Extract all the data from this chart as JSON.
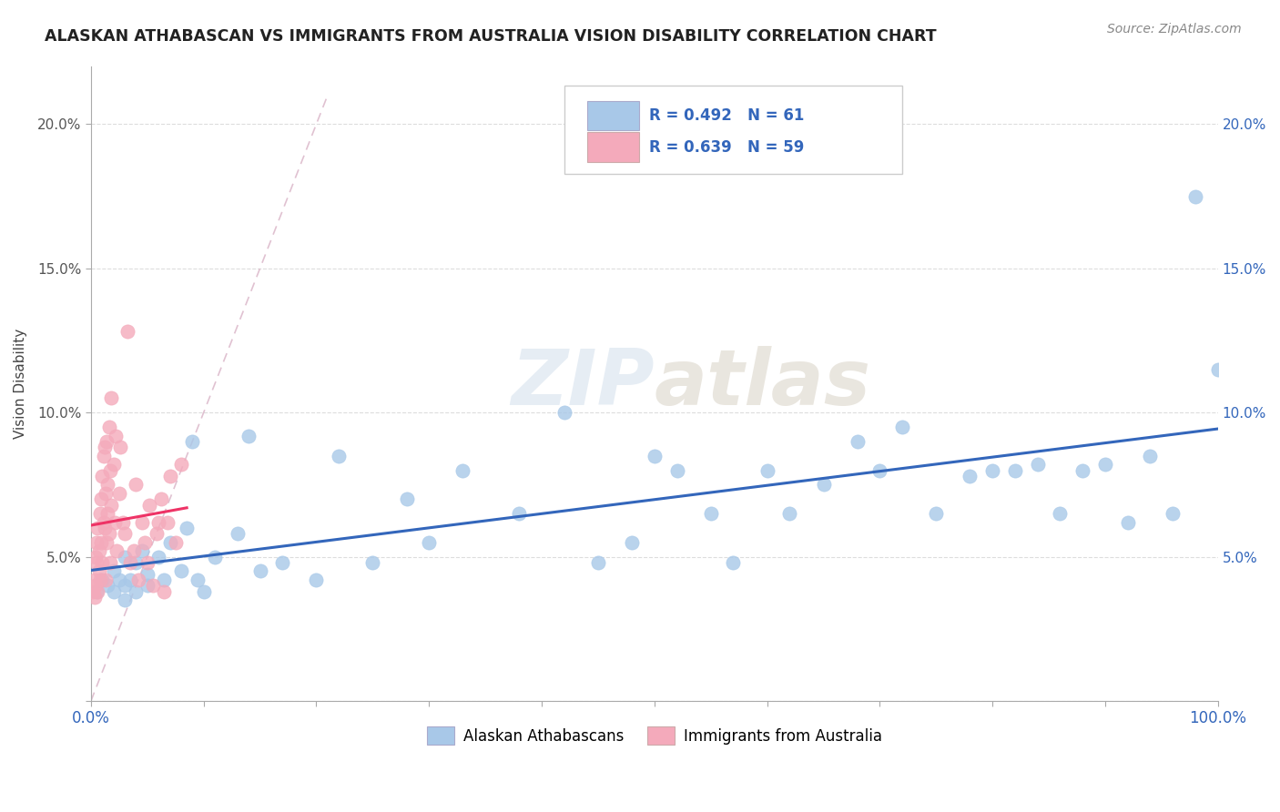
{
  "title": "ALASKAN ATHABASCAN VS IMMIGRANTS FROM AUSTRALIA VISION DISABILITY CORRELATION CHART",
  "source": "Source: ZipAtlas.com",
  "ylabel": "Vision Disability",
  "xlim": [
    0,
    1.0
  ],
  "ylim": [
    0,
    0.22
  ],
  "xtick_labels": [
    "0.0%",
    "",
    "",
    "",
    "",
    "",
    "",
    "",
    "",
    "",
    "100.0%"
  ],
  "xtick_vals": [
    0.0,
    0.1,
    0.2,
    0.3,
    0.4,
    0.5,
    0.6,
    0.7,
    0.8,
    0.9,
    1.0
  ],
  "ytick_labels": [
    "",
    "5.0%",
    "10.0%",
    "15.0%",
    "20.0%"
  ],
  "ytick_vals": [
    0.0,
    0.05,
    0.1,
    0.15,
    0.2
  ],
  "right_ytick_labels": [
    "",
    "5.0%",
    "10.0%",
    "15.0%",
    "20.0%"
  ],
  "legend_blue_label": "Alaskan Athabascans",
  "legend_pink_label": "Immigrants from Australia",
  "R_blue": "R = 0.492",
  "N_blue": "N = 61",
  "R_pink": "R = 0.639",
  "N_pink": "N = 59",
  "blue_scatter_color": "#A8C8E8",
  "pink_scatter_color": "#F4AABB",
  "blue_line_color": "#3366BB",
  "pink_line_color": "#EE3366",
  "diag_line_color": "#DDBBCC",
  "watermark_color": "#C8D8E8",
  "blue_label_color": "#3366BB",
  "right_label_color": "#3366BB",
  "blue_points_x": [
    0.005,
    0.01,
    0.015,
    0.02,
    0.02,
    0.025,
    0.03,
    0.03,
    0.03,
    0.035,
    0.04,
    0.04,
    0.045,
    0.05,
    0.05,
    0.06,
    0.065,
    0.07,
    0.08,
    0.085,
    0.09,
    0.095,
    0.1,
    0.11,
    0.13,
    0.14,
    0.15,
    0.17,
    0.2,
    0.22,
    0.25,
    0.28,
    0.3,
    0.33,
    0.38,
    0.42,
    0.45,
    0.48,
    0.5,
    0.52,
    0.55,
    0.57,
    0.6,
    0.62,
    0.65,
    0.68,
    0.7,
    0.72,
    0.75,
    0.78,
    0.8,
    0.82,
    0.84,
    0.86,
    0.88,
    0.9,
    0.92,
    0.94,
    0.96,
    0.98,
    1.0
  ],
  "blue_points_y": [
    0.038,
    0.042,
    0.04,
    0.038,
    0.045,
    0.042,
    0.04,
    0.05,
    0.035,
    0.042,
    0.048,
    0.038,
    0.052,
    0.044,
    0.04,
    0.05,
    0.042,
    0.055,
    0.045,
    0.06,
    0.09,
    0.042,
    0.038,
    0.05,
    0.058,
    0.092,
    0.045,
    0.048,
    0.042,
    0.085,
    0.048,
    0.07,
    0.055,
    0.08,
    0.065,
    0.1,
    0.048,
    0.055,
    0.085,
    0.08,
    0.065,
    0.048,
    0.08,
    0.065,
    0.075,
    0.09,
    0.08,
    0.095,
    0.065,
    0.078,
    0.08,
    0.08,
    0.082,
    0.065,
    0.08,
    0.082,
    0.062,
    0.085,
    0.065,
    0.175,
    0.115
  ],
  "pink_points_x": [
    0.002,
    0.003,
    0.003,
    0.004,
    0.004,
    0.005,
    0.005,
    0.006,
    0.006,
    0.007,
    0.007,
    0.008,
    0.008,
    0.009,
    0.009,
    0.01,
    0.01,
    0.011,
    0.011,
    0.012,
    0.012,
    0.013,
    0.013,
    0.014,
    0.014,
    0.015,
    0.015,
    0.016,
    0.016,
    0.017,
    0.017,
    0.018,
    0.018,
    0.02,
    0.021,
    0.022,
    0.023,
    0.025,
    0.026,
    0.028,
    0.03,
    0.032,
    0.035,
    0.038,
    0.04,
    0.042,
    0.045,
    0.048,
    0.05,
    0.052,
    0.055,
    0.058,
    0.06,
    0.062,
    0.065,
    0.068,
    0.07,
    0.075,
    0.08
  ],
  "pink_points_y": [
    0.038,
    0.042,
    0.036,
    0.04,
    0.05,
    0.048,
    0.055,
    0.038,
    0.06,
    0.052,
    0.045,
    0.065,
    0.042,
    0.055,
    0.07,
    0.048,
    0.078,
    0.062,
    0.085,
    0.06,
    0.088,
    0.042,
    0.072,
    0.055,
    0.09,
    0.075,
    0.065,
    0.095,
    0.058,
    0.08,
    0.048,
    0.105,
    0.068,
    0.082,
    0.062,
    0.092,
    0.052,
    0.072,
    0.088,
    0.062,
    0.058,
    0.128,
    0.048,
    0.052,
    0.075,
    0.042,
    0.062,
    0.055,
    0.048,
    0.068,
    0.04,
    0.058,
    0.062,
    0.07,
    0.038,
    0.062,
    0.078,
    0.055,
    0.082
  ],
  "blue_intercept": 0.038,
  "blue_slope": 0.055,
  "pink_intercept": 0.028,
  "pink_slope": 1.05
}
